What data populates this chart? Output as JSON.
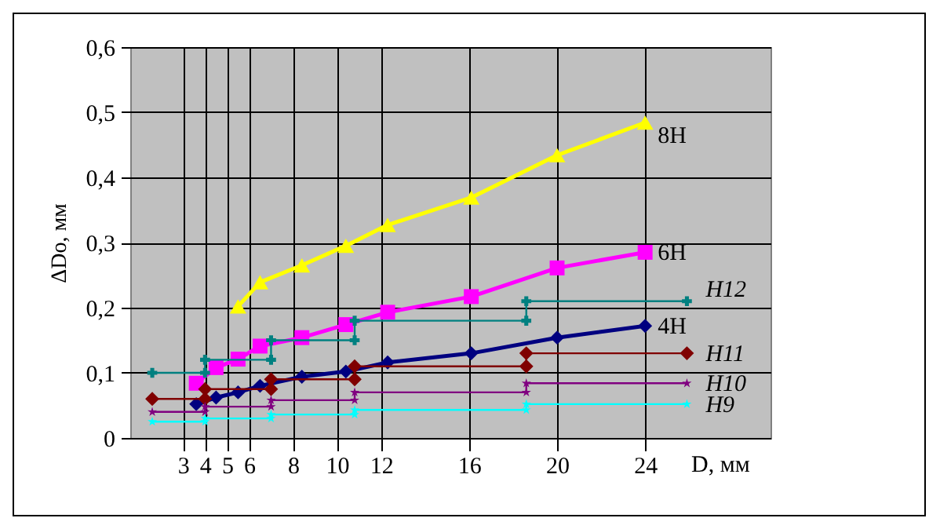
{
  "chart_data": {
    "type": "line",
    "xlabel": "D, мм",
    "ylabel": "ΔDo, мм",
    "xlim": [
      0.6,
      29.7
    ],
    "ylim": [
      0,
      0.6
    ],
    "xticks": [
      3,
      4,
      5,
      6,
      8,
      10,
      12,
      16,
      20,
      24
    ],
    "yticks": [
      {
        "value": 0,
        "label": "0"
      },
      {
        "value": 0.1,
        "label": "0,1"
      },
      {
        "value": 0.2,
        "label": "0,2"
      },
      {
        "value": 0.3,
        "label": "0,3"
      },
      {
        "value": 0.4,
        "label": "0,4"
      },
      {
        "value": 0.5,
        "label": "0,5"
      },
      {
        "value": 0.6,
        "label": "0,6"
      }
    ],
    "grid": true,
    "series": [
      {
        "name": "8H",
        "color": "#ffff00",
        "marker": "triangle",
        "x": [
          5.5,
          6.5,
          8.4,
          10.4,
          12.3,
          16.1,
          20,
          24
        ],
        "values": [
          0.202,
          0.239,
          0.265,
          0.295,
          0.327,
          0.369,
          0.434,
          0.484
        ]
      },
      {
        "name": "6H",
        "color": "#ff00ff",
        "marker": "square",
        "x": [
          3.6,
          4.5,
          5.5,
          6.5,
          8.4,
          10.4,
          12.3,
          16.1,
          20,
          24
        ],
        "values": [
          0.084,
          0.108,
          0.121,
          0.141,
          0.154,
          0.174,
          0.193,
          0.217,
          0.261,
          0.285
        ]
      },
      {
        "name": "4H",
        "color": "#000080",
        "marker": "diamond",
        "x": [
          3.6,
          4.5,
          5.5,
          6.5,
          8.4,
          10.4,
          12.3,
          16.1,
          20,
          24
        ],
        "values": [
          0.052,
          0.062,
          0.07,
          0.08,
          0.094,
          0.102,
          0.116,
          0.13,
          0.154,
          0.172
        ]
      },
      {
        "name": "H12",
        "color": "#008080",
        "marker": "cross",
        "x": [
          1.6,
          4.0,
          4.0,
          7.0,
          7.0,
          10.8,
          10.8,
          18.6,
          18.6,
          25.9
        ],
        "values": [
          0.1,
          0.1,
          0.12,
          0.12,
          0.15,
          0.15,
          0.18,
          0.18,
          0.21,
          0.21
        ]
      },
      {
        "name": "H11",
        "color": "#800000",
        "marker": "diamond",
        "x": [
          1.6,
          4.0,
          4.0,
          7.0,
          7.0,
          10.8,
          10.8,
          18.6,
          18.6,
          25.9
        ],
        "values": [
          0.06,
          0.06,
          0.075,
          0.075,
          0.09,
          0.09,
          0.11,
          0.11,
          0.13,
          0.13
        ]
      },
      {
        "name": "H10",
        "color": "#800080",
        "marker": "star",
        "x": [
          1.6,
          4.0,
          4.0,
          7.0,
          7.0,
          10.8,
          10.8,
          18.6,
          18.6,
          25.9
        ],
        "values": [
          0.04,
          0.04,
          0.048,
          0.048,
          0.058,
          0.058,
          0.07,
          0.07,
          0.084,
          0.084
        ]
      },
      {
        "name": "H9",
        "color": "#00ffff",
        "marker": "star",
        "x": [
          1.6,
          4.0,
          4.0,
          7.0,
          7.0,
          10.8,
          10.8,
          18.6,
          18.6,
          25.9
        ],
        "values": [
          0.025,
          0.025,
          0.03,
          0.03,
          0.036,
          0.036,
          0.043,
          0.043,
          0.052,
          0.052
        ]
      }
    ]
  }
}
